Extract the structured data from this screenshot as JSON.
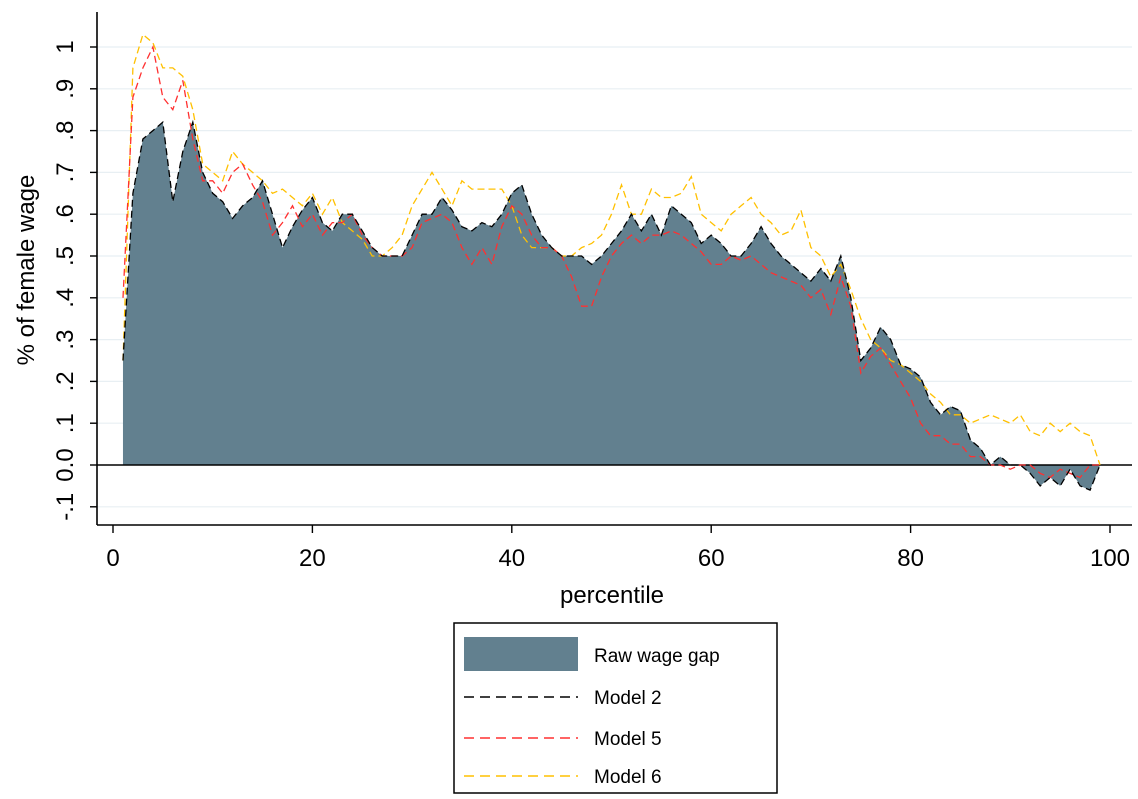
{
  "chart_data": {
    "type": "area",
    "title": "",
    "xlabel": "percentile",
    "ylabel": "% of female wage",
    "xlim": [
      0,
      100
    ],
    "ylim": [
      -0.15,
      1.05
    ],
    "xticks": [
      0,
      20,
      40,
      60,
      80,
      100
    ],
    "xtick_labels": [
      "0",
      "20",
      "40",
      "60",
      "80",
      "100"
    ],
    "yticks": [
      -0.1,
      0,
      0.1,
      0.2,
      0.3,
      0.4,
      0.5,
      0.6,
      0.7,
      0.8,
      0.9,
      1
    ],
    "ytick_labels": [
      "-.1",
      "0.0",
      ".1",
      ".2",
      ".3",
      ".4",
      ".5",
      ".6",
      ".7",
      ".8",
      ".9",
      "1"
    ],
    "grid": true,
    "legend_position": "bottom",
    "x": [
      1,
      2,
      3,
      4,
      5,
      6,
      7,
      8,
      9,
      10,
      11,
      12,
      13,
      14,
      15,
      16,
      17,
      18,
      19,
      20,
      21,
      22,
      23,
      24,
      25,
      26,
      27,
      28,
      29,
      30,
      31,
      32,
      33,
      34,
      35,
      36,
      37,
      38,
      39,
      40,
      41,
      42,
      43,
      44,
      45,
      46,
      47,
      48,
      49,
      50,
      51,
      52,
      53,
      54,
      55,
      56,
      57,
      58,
      59,
      60,
      61,
      62,
      63,
      64,
      65,
      66,
      67,
      68,
      69,
      70,
      71,
      72,
      73,
      74,
      75,
      76,
      77,
      78,
      79,
      80,
      81,
      82,
      83,
      84,
      85,
      86,
      87,
      88,
      89,
      90,
      91,
      92,
      93,
      94,
      95,
      96,
      97,
      98,
      99
    ],
    "series": [
      {
        "name": "Raw wage gap",
        "style": "area",
        "color": "#62808f",
        "values": [
          0.25,
          0.65,
          0.78,
          0.8,
          0.82,
          0.63,
          0.75,
          0.82,
          0.7,
          0.65,
          0.63,
          0.59,
          0.62,
          0.64,
          0.68,
          0.6,
          0.52,
          0.57,
          0.61,
          0.64,
          0.58,
          0.56,
          0.6,
          0.6,
          0.56,
          0.52,
          0.5,
          0.5,
          0.5,
          0.55,
          0.6,
          0.6,
          0.64,
          0.61,
          0.57,
          0.56,
          0.58,
          0.57,
          0.6,
          0.65,
          0.67,
          0.6,
          0.55,
          0.52,
          0.5,
          0.5,
          0.5,
          0.48,
          0.5,
          0.53,
          0.56,
          0.6,
          0.56,
          0.6,
          0.55,
          0.62,
          0.6,
          0.58,
          0.53,
          0.55,
          0.53,
          0.5,
          0.5,
          0.53,
          0.57,
          0.53,
          0.5,
          0.48,
          0.46,
          0.44,
          0.47,
          0.44,
          0.5,
          0.4,
          0.25,
          0.28,
          0.33,
          0.3,
          0.24,
          0.23,
          0.21,
          0.15,
          0.12,
          0.14,
          0.13,
          0.06,
          0.04,
          0.0,
          0.02,
          0.0,
          0.0,
          -0.02,
          -0.05,
          -0.03,
          -0.05,
          -0.01,
          -0.05,
          -0.06,
          0.0
        ]
      },
      {
        "name": "Model 2",
        "style": "dashed",
        "color": "#000000",
        "values": [
          0.25,
          0.65,
          0.78,
          0.8,
          0.82,
          0.63,
          0.75,
          0.82,
          0.7,
          0.65,
          0.63,
          0.59,
          0.62,
          0.64,
          0.68,
          0.6,
          0.52,
          0.57,
          0.61,
          0.64,
          0.58,
          0.56,
          0.6,
          0.6,
          0.56,
          0.52,
          0.5,
          0.5,
          0.5,
          0.55,
          0.6,
          0.6,
          0.64,
          0.61,
          0.57,
          0.56,
          0.58,
          0.57,
          0.6,
          0.65,
          0.67,
          0.6,
          0.55,
          0.52,
          0.5,
          0.5,
          0.5,
          0.48,
          0.5,
          0.53,
          0.56,
          0.6,
          0.56,
          0.6,
          0.55,
          0.62,
          0.6,
          0.58,
          0.53,
          0.55,
          0.53,
          0.5,
          0.5,
          0.53,
          0.57,
          0.53,
          0.5,
          0.48,
          0.46,
          0.44,
          0.47,
          0.44,
          0.5,
          0.4,
          0.25,
          0.28,
          0.33,
          0.3,
          0.24,
          0.23,
          0.21,
          0.15,
          0.12,
          0.14,
          0.13,
          0.06,
          0.04,
          0.0,
          0.02,
          0.0,
          0.0,
          -0.02,
          -0.05,
          -0.03,
          -0.05,
          -0.01,
          -0.05,
          -0.06,
          0.0
        ]
      },
      {
        "name": "Model 5",
        "style": "dashed",
        "color": "#ff3030",
        "values": [
          0.4,
          0.88,
          0.95,
          1.0,
          0.88,
          0.85,
          0.92,
          0.78,
          0.68,
          0.68,
          0.65,
          0.7,
          0.72,
          0.67,
          0.63,
          0.55,
          0.58,
          0.62,
          0.57,
          0.6,
          0.55,
          0.58,
          0.58,
          0.6,
          0.55,
          0.52,
          0.5,
          0.5,
          0.5,
          0.52,
          0.58,
          0.59,
          0.6,
          0.58,
          0.52,
          0.48,
          0.52,
          0.48,
          0.57,
          0.62,
          0.6,
          0.55,
          0.52,
          0.52,
          0.5,
          0.45,
          0.38,
          0.38,
          0.45,
          0.5,
          0.53,
          0.55,
          0.53,
          0.55,
          0.55,
          0.56,
          0.55,
          0.53,
          0.51,
          0.48,
          0.48,
          0.5,
          0.49,
          0.5,
          0.48,
          0.46,
          0.45,
          0.44,
          0.43,
          0.4,
          0.42,
          0.36,
          0.45,
          0.38,
          0.22,
          0.26,
          0.28,
          0.24,
          0.2,
          0.16,
          0.1,
          0.07,
          0.07,
          0.05,
          0.05,
          0.02,
          0.02,
          0.0,
          0.0,
          -0.01,
          0.0,
          0.0,
          -0.02,
          -0.03,
          -0.01,
          -0.02,
          -0.03,
          0.0,
          0.0
        ]
      },
      {
        "name": "Model 6",
        "style": "dashed",
        "color": "#ffc000",
        "values": [
          0.25,
          0.95,
          1.03,
          1.01,
          0.95,
          0.95,
          0.93,
          0.85,
          0.72,
          0.7,
          0.68,
          0.75,
          0.72,
          0.7,
          0.68,
          0.65,
          0.66,
          0.64,
          0.62,
          0.65,
          0.6,
          0.64,
          0.58,
          0.56,
          0.54,
          0.5,
          0.5,
          0.52,
          0.55,
          0.62,
          0.66,
          0.7,
          0.66,
          0.62,
          0.68,
          0.66,
          0.66,
          0.66,
          0.66,
          0.62,
          0.55,
          0.52,
          0.52,
          0.52,
          0.5,
          0.5,
          0.52,
          0.53,
          0.55,
          0.6,
          0.67,
          0.6,
          0.6,
          0.66,
          0.64,
          0.64,
          0.65,
          0.69,
          0.6,
          0.58,
          0.56,
          0.6,
          0.62,
          0.64,
          0.6,
          0.58,
          0.55,
          0.56,
          0.61,
          0.52,
          0.5,
          0.45,
          0.48,
          0.42,
          0.35,
          0.3,
          0.28,
          0.25,
          0.24,
          0.22,
          0.2,
          0.17,
          0.15,
          0.12,
          0.12,
          0.1,
          0.11,
          0.12,
          0.11,
          0.1,
          0.12,
          0.08,
          0.07,
          0.1,
          0.08,
          0.1,
          0.08,
          0.07,
          0.0
        ]
      }
    ]
  }
}
